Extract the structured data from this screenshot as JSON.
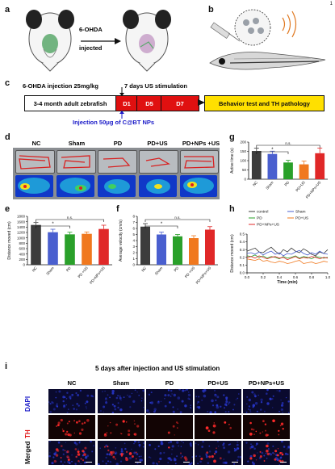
{
  "page_number": "1",
  "panels": {
    "a": {
      "label": "a",
      "arrow_text_top": "6-OHDA",
      "arrow_text_bottom": "injected"
    },
    "b": {
      "label": "b"
    },
    "c": {
      "label": "c",
      "injection_text": "6-OHDA injection 25mg/kg",
      "us_text": "7 days US stimulation",
      "fish_box": "3-4 month adult zebrafish",
      "days": [
        "D1",
        "D5",
        "D7"
      ],
      "result_box": "Behavior test and TH pathology",
      "np_text": "Injection 50μg of C@BT NPs"
    },
    "d": {
      "label": "d",
      "groups": [
        "NC",
        "Sham",
        "PD",
        "PD+US",
        "PD+NPs +US"
      ]
    },
    "e": {
      "label": "e"
    },
    "f": {
      "label": "f"
    },
    "g": {
      "label": "g"
    },
    "h": {
      "label": "h"
    },
    "i": {
      "label": "i",
      "title": "5 days after injection and US stimulation",
      "columns": [
        "NC",
        "Sham",
        "PD",
        "PD+US",
        "PD+NPs+US"
      ],
      "rows": [
        "DAPI",
        "TH",
        "Merged"
      ]
    }
  },
  "colors": {
    "nc": "#3c3c3c",
    "sham": "#4a5fcf",
    "pd": "#2aa02a",
    "pdus": "#f0781e",
    "pdnpsus": "#e02828",
    "timeline_red": "#e01010",
    "timeline_yellow": "#ffe000",
    "injection_blue": "#1818c8"
  },
  "chart_data": [
    {
      "panel": "e",
      "type": "bar",
      "categories": [
        "NC",
        "Sham",
        "PD",
        "PD +US",
        "PD+NPs+US"
      ],
      "values": [
        1480,
        1210,
        1130,
        1150,
        1330
      ],
      "errors": [
        90,
        110,
        80,
        70,
        140
      ],
      "ylabel": "Distance moved (cm)",
      "ylim": [
        0,
        1800
      ],
      "yticks": [
        "0",
        "200",
        "400",
        "600",
        "800",
        "1000",
        "1200",
        "1400",
        "1600",
        "1800"
      ],
      "annotations": [
        "*",
        "n.s."
      ]
    },
    {
      "panel": "f",
      "type": "bar",
      "categories": [
        "NC",
        "Sham",
        "PD",
        "PD +US",
        "PD+NPs+US"
      ],
      "values": [
        6.3,
        5.0,
        4.7,
        4.4,
        5.8
      ],
      "errors": [
        0.5,
        0.4,
        0.3,
        0.4,
        0.5
      ],
      "ylabel": "Average velocity (cm/s)",
      "ylim": [
        0,
        8
      ],
      "yticks": [
        "0",
        "1",
        "2",
        "3",
        "4",
        "5",
        "6",
        "7",
        "8"
      ],
      "annotations": [
        "*",
        "n.s."
      ]
    },
    {
      "panel": "g",
      "type": "bar",
      "categories": [
        "NC",
        "Sham",
        "PD",
        "PD+US",
        "PD+NPs+US"
      ],
      "values": [
        152,
        136,
        90,
        80,
        140
      ],
      "errors": [
        15,
        15,
        12,
        18,
        28
      ],
      "ylabel": "Active time (s)",
      "ylim": [
        0,
        200
      ],
      "yticks": [
        "0",
        "50",
        "100",
        "150",
        "200"
      ],
      "annotations": [
        "*",
        "n.s."
      ]
    },
    {
      "panel": "h",
      "type": "line",
      "xlabel": "Time (min)",
      "ylabel": "Distance moved (cm)",
      "xlim": [
        0,
        1.0
      ],
      "ylim": [
        0,
        0.5
      ],
      "xticks": [
        "0.0",
        "0.2",
        "0.4",
        "0.6",
        "0.8",
        "1.0"
      ],
      "yticks": [
        "0.0",
        "0.1",
        "0.2",
        "0.3",
        "0.4",
        "0.5"
      ],
      "x": [
        0.0,
        0.05,
        0.1,
        0.15,
        0.2,
        0.25,
        0.3,
        0.35,
        0.4,
        0.45,
        0.5,
        0.55,
        0.6,
        0.65,
        0.7,
        0.75,
        0.8,
        0.85,
        0.9,
        0.95,
        1.0
      ],
      "series": [
        {
          "name": "control",
          "values": [
            0.28,
            0.3,
            0.32,
            0.27,
            0.26,
            0.3,
            0.33,
            0.28,
            0.24,
            0.3,
            0.27,
            0.32,
            0.28,
            0.26,
            0.31,
            0.28,
            0.24,
            0.22,
            0.27,
            0.25,
            0.3
          ]
        },
        {
          "name": "Sham",
          "values": [
            0.25,
            0.26,
            0.24,
            0.27,
            0.23,
            0.26,
            0.28,
            0.24,
            0.26,
            0.22,
            0.25,
            0.24,
            0.27,
            0.29,
            0.25,
            0.23,
            0.26,
            0.24,
            0.28,
            0.25,
            0.24
          ]
        },
        {
          "name": "PD",
          "values": [
            0.22,
            0.21,
            0.23,
            0.2,
            0.22,
            0.19,
            0.21,
            0.2,
            0.18,
            0.21,
            0.19,
            0.2,
            0.22,
            0.19,
            0.21,
            0.2,
            0.18,
            0.21,
            0.2,
            0.19,
            0.2
          ]
        },
        {
          "name": "PD+US",
          "values": [
            0.18,
            0.17,
            0.16,
            0.18,
            0.15,
            0.16,
            0.14,
            0.13,
            0.15,
            0.14,
            0.12,
            0.13,
            0.15,
            0.16,
            0.12,
            0.13,
            0.14,
            0.12,
            0.13,
            0.15,
            0.14
          ]
        },
        {
          "name": "PD+NPs+US",
          "values": [
            0.2,
            0.21,
            0.19,
            0.22,
            0.2,
            0.18,
            0.2,
            0.21,
            0.19,
            0.2,
            0.17,
            0.19,
            0.21,
            0.18,
            0.2,
            0.19,
            0.21,
            0.2,
            0.18,
            0.2,
            0.19
          ]
        }
      ]
    }
  ]
}
